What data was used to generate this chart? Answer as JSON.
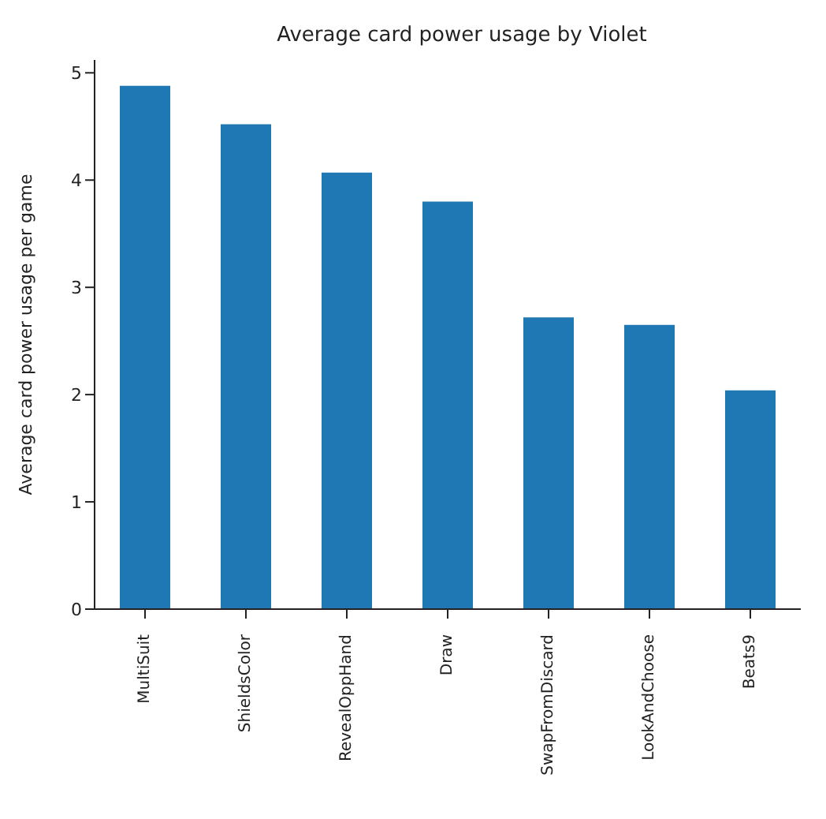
{
  "chart_data": {
    "type": "bar",
    "title": "Average card power usage by Violet",
    "ylabel": "Average card power usage per game",
    "categories": [
      "MultiSuit",
      "ShieldsColor",
      "RevealOppHand",
      "Draw",
      "SwapFromDiscard",
      "LookAndChoose",
      "Beats9"
    ],
    "values": [
      4.88,
      4.52,
      4.07,
      3.8,
      2.72,
      2.65,
      2.04
    ],
    "color": "#1f77b4",
    "ylim": [
      0,
      5.12
    ],
    "yticks": [
      0,
      1,
      2,
      3,
      4,
      5
    ],
    "grid": false,
    "legend": false
  }
}
